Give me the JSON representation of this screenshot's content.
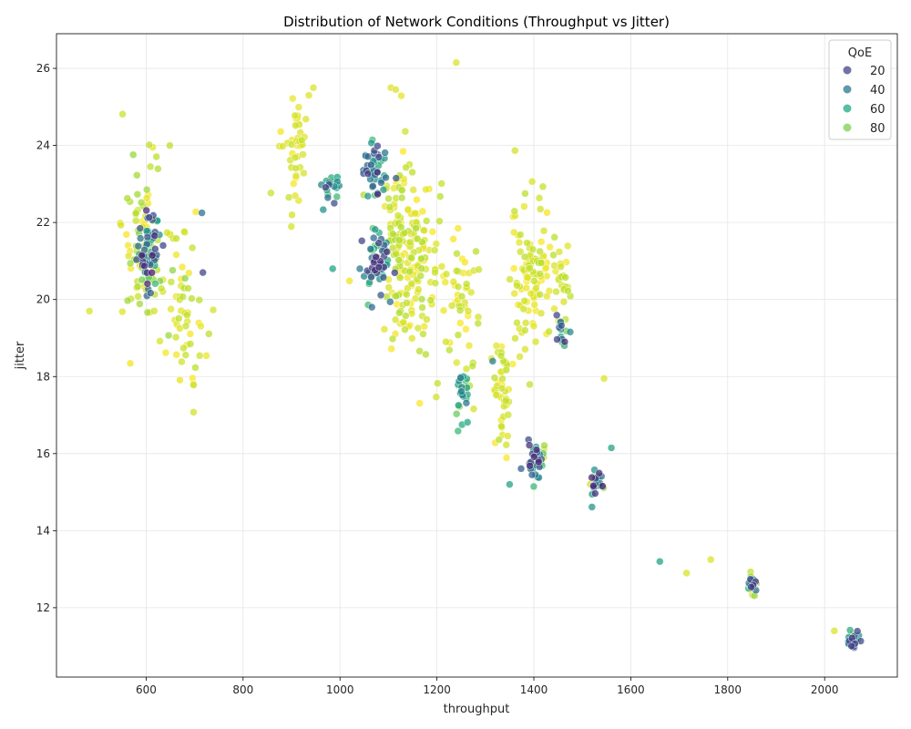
{
  "chart_data": {
    "type": "scatter",
    "title": "Distribution of Network Conditions (Throughput vs Jitter)",
    "xlabel": "throughput",
    "ylabel": "jitter",
    "xlim": [
      415,
      2150
    ],
    "ylim": [
      10.2,
      26.9
    ],
    "x_ticks": [
      600,
      800,
      1000,
      1200,
      1400,
      1600,
      1800,
      2000
    ],
    "y_ticks": [
      12,
      14,
      16,
      18,
      20,
      22,
      24,
      26
    ],
    "grid": true,
    "colormap": "viridis",
    "color_variable": "QoE",
    "color_range": [
      5,
      100
    ],
    "legend": {
      "title": "QoE",
      "position": "top-right",
      "entries": [
        {
          "label": "20",
          "value": 20,
          "color": "#414487"
        },
        {
          "label": "40",
          "value": 40,
          "color": "#2a788e"
        },
        {
          "label": "60",
          "value": 60,
          "color": "#22a884"
        },
        {
          "label": "80",
          "value": 80,
          "color": "#7ad151"
        }
      ]
    },
    "colors": {
      "low": "#440154",
      "high": "#fde725"
    },
    "clusters": [
      {
        "cx": 605,
        "cy": 21.3,
        "sx": 12,
        "sy": 0.5,
        "n": 60,
        "qoe": [
          10,
          75
        ]
      },
      {
        "cx": 590,
        "cy": 21.5,
        "sx": 25,
        "sy": 1.3,
        "n": 70,
        "qoe": [
          85,
          100
        ]
      },
      {
        "cx": 680,
        "cy": 19.5,
        "sx": 22,
        "sy": 1.0,
        "n": 50,
        "qoe": [
          90,
          100
        ]
      },
      {
        "cx": 640,
        "cy": 21.0,
        "sx": 40,
        "sy": 0.8,
        "n": 20,
        "qoe": [
          80,
          100
        ]
      },
      {
        "cx": 905,
        "cy": 24.0,
        "sx": 14,
        "sy": 0.8,
        "n": 45,
        "qoe": [
          92,
          100
        ]
      },
      {
        "cx": 975,
        "cy": 22.8,
        "sx": 10,
        "sy": 0.4,
        "n": 20,
        "qoe": [
          20,
          80
        ]
      },
      {
        "cx": 1070,
        "cy": 23.3,
        "sx": 14,
        "sy": 0.4,
        "n": 45,
        "qoe": [
          15,
          75
        ]
      },
      {
        "cx": 1075,
        "cy": 21.0,
        "sx": 16,
        "sy": 0.4,
        "n": 60,
        "qoe": [
          15,
          80
        ]
      },
      {
        "cx": 1120,
        "cy": 21.5,
        "sx": 25,
        "sy": 1.2,
        "n": 120,
        "qoe": [
          88,
          100
        ]
      },
      {
        "cx": 1165,
        "cy": 20.8,
        "sx": 25,
        "sy": 1.2,
        "n": 80,
        "qoe": [
          88,
          100
        ]
      },
      {
        "cx": 1255,
        "cy": 17.6,
        "sx": 10,
        "sy": 0.3,
        "n": 30,
        "qoe": [
          40,
          95
        ]
      },
      {
        "cx": 1250,
        "cy": 20.0,
        "sx": 20,
        "sy": 0.9,
        "n": 45,
        "qoe": [
          90,
          100
        ]
      },
      {
        "cx": 1335,
        "cy": 17.5,
        "sx": 10,
        "sy": 0.8,
        "n": 45,
        "qoe": [
          90,
          100
        ]
      },
      {
        "cx": 1395,
        "cy": 20.7,
        "sx": 22,
        "sy": 0.9,
        "n": 110,
        "qoe": [
          90,
          100
        ]
      },
      {
        "cx": 1405,
        "cy": 15.8,
        "sx": 10,
        "sy": 0.25,
        "n": 45,
        "qoe": [
          15,
          95
        ]
      },
      {
        "cx": 1460,
        "cy": 19.1,
        "sx": 6,
        "sy": 0.2,
        "n": 15,
        "qoe": [
          15,
          80
        ]
      },
      {
        "cx": 1460,
        "cy": 20.5,
        "sx": 10,
        "sy": 0.5,
        "n": 25,
        "qoe": [
          90,
          100
        ]
      },
      {
        "cx": 1530,
        "cy": 15.2,
        "sx": 8,
        "sy": 0.2,
        "n": 25,
        "qoe": [
          10,
          95
        ]
      },
      {
        "cx": 1850,
        "cy": 12.6,
        "sx": 5,
        "sy": 0.12,
        "n": 30,
        "qoe": [
          20,
          95
        ]
      },
      {
        "cx": 2060,
        "cy": 11.15,
        "sx": 7,
        "sy": 0.12,
        "n": 30,
        "qoe": [
          20,
          95
        ]
      }
    ],
    "outliers": [
      {
        "x": 483,
        "y": 19.7,
        "qoe": 95
      },
      {
        "x": 1240,
        "y": 26.15,
        "qoe": 95
      },
      {
        "x": 715,
        "y": 22.25,
        "qoe": 40
      },
      {
        "x": 717,
        "y": 20.7,
        "qoe": 25
      },
      {
        "x": 1660,
        "y": 13.2,
        "qoe": 60
      },
      {
        "x": 1715,
        "y": 12.9,
        "qoe": 95
      },
      {
        "x": 1765,
        "y": 13.25,
        "qoe": 95
      },
      {
        "x": 1545,
        "y": 17.95,
        "qoe": 95
      },
      {
        "x": 1560,
        "y": 16.15,
        "qoe": 60
      },
      {
        "x": 1350,
        "y": 15.2,
        "qoe": 60
      },
      {
        "x": 945,
        "y": 25.5,
        "qoe": 95
      },
      {
        "x": 1105,
        "y": 25.5,
        "qoe": 95
      },
      {
        "x": 1115,
        "y": 25.45,
        "qoe": 95
      },
      {
        "x": 2020,
        "y": 11.4,
        "qoe": 95
      },
      {
        "x": 1315,
        "y": 18.4,
        "qoe": 45
      },
      {
        "x": 985,
        "y": 20.8,
        "qoe": 60
      }
    ]
  }
}
